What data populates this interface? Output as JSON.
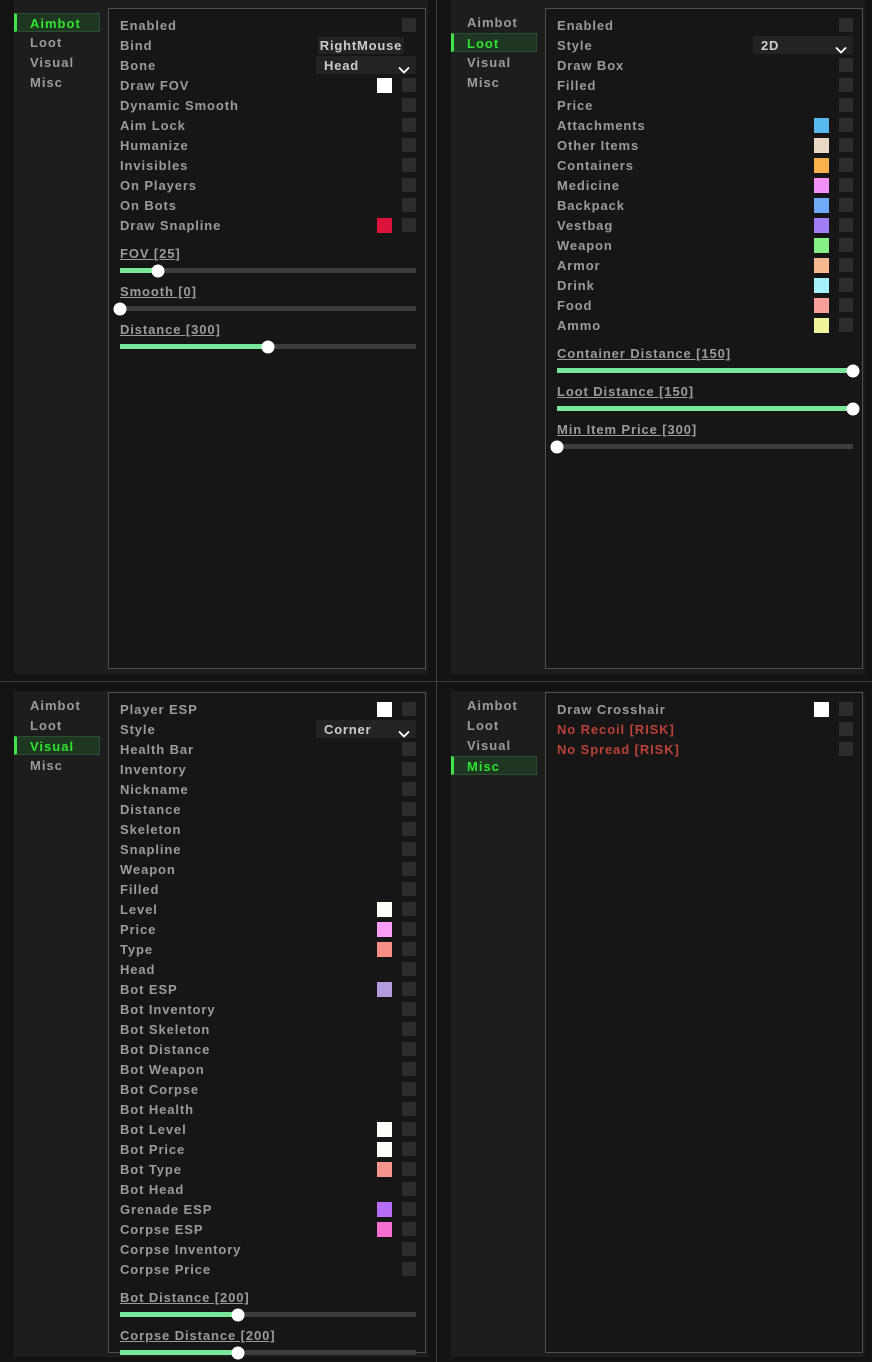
{
  "theme": {
    "page_bg": "#131313",
    "window_bg": "#1d1d1d",
    "panel_bg": "#161616",
    "panel_border": "#4f4f4f",
    "label_color": "#9b9b9b",
    "risk_color": "#b94137",
    "active_tab_color": "#2ee32e",
    "active_tab_bar": "#3fe54a",
    "active_tab_bg": "#1e3622",
    "checkbox_bg": "#2d2d2d",
    "field_bg": "#232323",
    "field_text": "#cccccc",
    "slider_track": "#3d3d3d",
    "slider_fill": "#79e69a",
    "slider_thumb": "#ffffff"
  },
  "sidebar_labels": [
    "Aimbot",
    "Loot",
    "Visual",
    "Misc"
  ],
  "quadrants": [
    {
      "id": "aimbot",
      "active_tab": "Aimbot",
      "rows": [
        {
          "label": "Enabled",
          "checkbox": true
        },
        {
          "label": "Bind",
          "value": "RightMouse"
        },
        {
          "label": "Bone",
          "dropdown": "Head"
        },
        {
          "label": "Draw FOV",
          "swatch": "#ffffff",
          "checkbox": true
        },
        {
          "label": "Dynamic Smooth",
          "checkbox": true
        },
        {
          "label": "Aim Lock",
          "checkbox": true
        },
        {
          "label": "Humanize",
          "checkbox": true
        },
        {
          "label": "Invisibles",
          "checkbox": true
        },
        {
          "label": "On Players",
          "checkbox": true
        },
        {
          "label": "On Bots",
          "checkbox": true
        },
        {
          "label": "Draw Snapline",
          "swatch": "#dc143c",
          "checkbox": true
        }
      ],
      "sliders": [
        {
          "label": "FOV [25]",
          "percent": 13
        },
        {
          "label": "Smooth [0]",
          "percent": 0
        },
        {
          "label": "Distance [300]",
          "percent": 50
        }
      ]
    },
    {
      "id": "loot",
      "active_tab": "Loot",
      "rows": [
        {
          "label": "Enabled",
          "checkbox": true
        },
        {
          "label": "Style",
          "dropdown": "2D"
        },
        {
          "label": "Draw Box",
          "checkbox": true
        },
        {
          "label": "Filled",
          "checkbox": true
        },
        {
          "label": "Price",
          "checkbox": true
        },
        {
          "label": "Attachments",
          "swatch": "#57b9eb",
          "checkbox": true
        },
        {
          "label": "Other Items",
          "swatch": "#e9d8c3",
          "checkbox": true
        },
        {
          "label": "Containers",
          "swatch": "#f9b04d",
          "checkbox": true
        },
        {
          "label": "Medicine",
          "swatch": "#f292f8",
          "checkbox": true
        },
        {
          "label": "Backpack",
          "swatch": "#70a9f5",
          "checkbox": true
        },
        {
          "label": "Vestbag",
          "swatch": "#a17ef5",
          "checkbox": true
        },
        {
          "label": "Weapon",
          "swatch": "#86ef86",
          "checkbox": true
        },
        {
          "label": "Armor",
          "swatch": "#f5b88f",
          "checkbox": true
        },
        {
          "label": "Drink",
          "swatch": "#a6f2fb",
          "checkbox": true
        },
        {
          "label": "Food",
          "swatch": "#faa09a",
          "checkbox": true
        },
        {
          "label": "Ammo",
          "swatch": "#eff59b",
          "checkbox": true
        }
      ],
      "sliders": [
        {
          "label": "Container Distance [150]",
          "percent": 100
        },
        {
          "label": "Loot Distance [150]",
          "percent": 100
        },
        {
          "label": "Min Item Price [300]",
          "percent": 0
        }
      ]
    },
    {
      "id": "visual",
      "active_tab": "Visual",
      "rows": [
        {
          "label": "Player ESP",
          "swatch": "#ffffff",
          "checkbox": true
        },
        {
          "label": "Style",
          "dropdown": "Corner"
        },
        {
          "label": "Health Bar",
          "checkbox": true
        },
        {
          "label": "Inventory",
          "checkbox": true
        },
        {
          "label": "Nickname",
          "checkbox": true
        },
        {
          "label": "Distance",
          "checkbox": true
        },
        {
          "label": "Skeleton",
          "checkbox": true
        },
        {
          "label": "Snapline",
          "checkbox": true
        },
        {
          "label": "Weapon",
          "checkbox": true
        },
        {
          "label": "Filled",
          "checkbox": true
        },
        {
          "label": "Level",
          "swatch": "#fffdfa",
          "checkbox": true
        },
        {
          "label": "Price",
          "swatch": "#fa9df8",
          "checkbox": true
        },
        {
          "label": "Type",
          "swatch": "#f58e85",
          "checkbox": true
        },
        {
          "label": "Head",
          "checkbox": true
        },
        {
          "label": "Bot ESP",
          "swatch": "#b29cdd",
          "checkbox": true
        },
        {
          "label": "Bot Inventory",
          "checkbox": true
        },
        {
          "label": "Bot Skeleton",
          "checkbox": true
        },
        {
          "label": "Bot Distance",
          "checkbox": true
        },
        {
          "label": "Bot Weapon",
          "checkbox": true
        },
        {
          "label": "Bot Corpse",
          "checkbox": true
        },
        {
          "label": "Bot Health",
          "checkbox": true
        },
        {
          "label": "Bot Level",
          "swatch": "#fffdfa",
          "checkbox": true
        },
        {
          "label": "Bot Price",
          "swatch": "#fffdfa",
          "checkbox": true
        },
        {
          "label": "Bot Type",
          "swatch": "#f5948c",
          "checkbox": true
        },
        {
          "label": "Bot Head",
          "checkbox": true
        },
        {
          "label": "Grenade ESP",
          "swatch": "#b76ef5",
          "checkbox": true
        },
        {
          "label": "Corpse ESP",
          "swatch": "#f56fd0",
          "checkbox": true
        },
        {
          "label": "Corpse Inventory",
          "checkbox": true
        },
        {
          "label": "Corpse Price",
          "checkbox": true
        }
      ],
      "sliders": [
        {
          "label": "Bot Distance [200]",
          "percent": 40
        },
        {
          "label": "Corpse Distance [200]",
          "percent": 40
        }
      ]
    },
    {
      "id": "misc",
      "active_tab": "Misc",
      "rows": [
        {
          "label": "Draw Crosshair",
          "swatch": "#ffffff",
          "checkbox": true
        },
        {
          "label": "No Recoil [RISK]",
          "risk": true,
          "checkbox": true
        },
        {
          "label": "No Spread [RISK]",
          "risk": true,
          "checkbox": true
        }
      ],
      "sliders": []
    }
  ]
}
